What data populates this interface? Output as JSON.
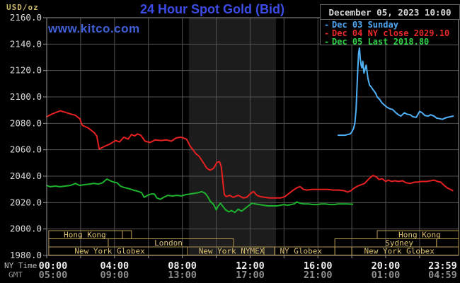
{
  "header": {
    "unit_label": "USD/oz",
    "unit_color": "#cdb96a",
    "title": "24 Hour Spot Gold (Bid)",
    "title_color": "#3d4ce6",
    "datetime": "December 05, 2023 10:00",
    "datetime_color": "#d6d6d6"
  },
  "watermark": {
    "text": "www.kitco.com",
    "color": "#4160d8"
  },
  "legend": {
    "entries": [
      {
        "marker": "-",
        "label": "Dec 03 Sunday",
        "color": "#4fa6f2"
      },
      {
        "marker": "-",
        "label": "Dec 04 NY close 2029.10",
        "color": "#ea2828"
      },
      {
        "marker": "-",
        "label": "Dec 05 Last 2018.80",
        "color": "#30d048"
      }
    ]
  },
  "chart_data": {
    "type": "line",
    "title": "24 Hour Spot Gold (Bid)",
    "ylabel": "USD/oz",
    "colors": {
      "background": "#000000",
      "band": "#1c1c1c",
      "grid": "#525252",
      "border": "#959595",
      "axis_text": "#dcdcdc",
      "ny_text": "#ededed",
      "gmt_text": "#8f8f8f",
      "tz_label_text": "#bdbdbd",
      "session_border": "#b09752",
      "session_text": "#ddc172"
    },
    "y_axis": {
      "min": 1980,
      "max": 2160,
      "step": 20,
      "tick_format": "####.0"
    },
    "x_axis": {
      "timezone_labels": [
        "NY Time",
        "GMT"
      ],
      "tick_hours": [
        0,
        4,
        8,
        12,
        16,
        20,
        23.983
      ],
      "ny_ticks": [
        "00:00",
        "04:00",
        "08:00",
        "12:00",
        "16:00",
        "20:00",
        "23:59"
      ],
      "gmt_ticks": [
        "05:00",
        "09:00",
        "13:00",
        "17:00",
        "21:00",
        "01:00",
        "04:59"
      ],
      "range_hours": [
        0,
        24
      ]
    },
    "highlight_band_hours": [
      8.39,
      13.53
    ],
    "sessions": [
      {
        "row": 0,
        "from": 0.12,
        "to": 4.47,
        "label": "Hong Kong",
        "label_h": 2.25
      },
      {
        "row": 0,
        "from": 4.47,
        "to": 5.0,
        "label": "",
        "label_h": 0
      },
      {
        "row": 0,
        "from": 19.5,
        "to": 24.3,
        "label": "Hong Kong",
        "label_h": 22.0
      },
      {
        "row": 1,
        "from": 0.12,
        "to": 3.63,
        "label": "",
        "label_h": 0
      },
      {
        "row": 1,
        "from": 3.63,
        "to": 11.02,
        "label": "London",
        "label_h": 7.18
      },
      {
        "row": 1,
        "from": 17.0,
        "to": 23.0,
        "label": "Sydney",
        "label_h": 20.8
      },
      {
        "row": 1,
        "from": 23.0,
        "to": 24.3,
        "label": "",
        "label_h": 0
      },
      {
        "row": 2,
        "from": 0.12,
        "to": 8.31,
        "label": "New York Globex",
        "label_h": 3.72
      },
      {
        "row": 2,
        "from": 8.31,
        "to": 12.82,
        "label": "New York NYMEX",
        "label_h": 10.9
      },
      {
        "row": 2,
        "from": 12.82,
        "to": 13.44,
        "label": "",
        "label_h": 0
      },
      {
        "row": 2,
        "from": 13.44,
        "to": 17.0,
        "label": "NY Globex",
        "label_h": 15.0
      },
      {
        "row": 2,
        "from": 17.0,
        "to": 18.0,
        "label": "",
        "label_h": 0
      },
      {
        "row": 2,
        "from": 18.0,
        "to": 24.3,
        "label": "New York Globex",
        "label_h": 20.8
      }
    ],
    "series": [
      {
        "id": "dec03",
        "name": "Dec 03 Sunday",
        "color": "#4fb0f5",
        "points": [
          [
            17.2,
            2071
          ],
          [
            17.4,
            2071
          ],
          [
            17.6,
            2071
          ],
          [
            17.75,
            2071.5
          ],
          [
            17.9,
            2072
          ],
          [
            18.0,
            2073.5
          ],
          [
            18.1,
            2076
          ],
          [
            18.18,
            2080
          ],
          [
            18.25,
            2090
          ],
          [
            18.3,
            2105
          ],
          [
            18.35,
            2120
          ],
          [
            18.4,
            2133
          ],
          [
            18.45,
            2137
          ],
          [
            18.5,
            2129
          ],
          [
            18.55,
            2124
          ],
          [
            18.6,
            2122
          ],
          [
            18.65,
            2127
          ],
          [
            18.72,
            2118
          ],
          [
            18.78,
            2121
          ],
          [
            18.85,
            2124
          ],
          [
            18.95,
            2114
          ],
          [
            19.05,
            2109
          ],
          [
            19.15,
            2107.5
          ],
          [
            19.25,
            2105.5
          ],
          [
            19.4,
            2103
          ],
          [
            19.5,
            2100
          ],
          [
            19.65,
            2098
          ],
          [
            19.78,
            2095.5
          ],
          [
            19.95,
            2093.5
          ],
          [
            20.1,
            2092
          ],
          [
            20.25,
            2091
          ],
          [
            20.4,
            2090.5
          ],
          [
            20.6,
            2088
          ],
          [
            20.75,
            2086.5
          ],
          [
            20.9,
            2085.5
          ],
          [
            21.1,
            2088
          ],
          [
            21.25,
            2087
          ],
          [
            21.45,
            2086.5
          ],
          [
            21.6,
            2085
          ],
          [
            21.8,
            2084.5
          ],
          [
            22.0,
            2089
          ],
          [
            22.15,
            2088
          ],
          [
            22.3,
            2086
          ],
          [
            22.5,
            2085.5
          ],
          [
            22.65,
            2086.5
          ],
          [
            22.85,
            2085.5
          ],
          [
            23.0,
            2084
          ],
          [
            23.2,
            2083.5
          ],
          [
            23.35,
            2083
          ],
          [
            23.5,
            2084
          ],
          [
            23.65,
            2084.5
          ],
          [
            23.8,
            2085
          ],
          [
            23.98,
            2085.5
          ]
        ]
      },
      {
        "id": "dec04",
        "name": "Dec 04",
        "color": "#e62020",
        "points": [
          [
            0.0,
            2085
          ],
          [
            0.3,
            2087
          ],
          [
            0.8,
            2089.5
          ],
          [
            1.3,
            2087.5
          ],
          [
            1.7,
            2086
          ],
          [
            1.95,
            2083.5
          ],
          [
            2.1,
            2078.5
          ],
          [
            2.45,
            2076.5
          ],
          [
            2.8,
            2073
          ],
          [
            2.95,
            2070.5
          ],
          [
            3.1,
            2060.5
          ],
          [
            3.4,
            2062.5
          ],
          [
            3.75,
            2064.5
          ],
          [
            4.05,
            2067
          ],
          [
            4.3,
            2066
          ],
          [
            4.55,
            2069.5
          ],
          [
            4.8,
            2068
          ],
          [
            5.0,
            2071.5
          ],
          [
            5.2,
            2070.5
          ],
          [
            5.35,
            2072
          ],
          [
            5.55,
            2071
          ],
          [
            5.8,
            2066.5
          ],
          [
            6.1,
            2065.5
          ],
          [
            6.4,
            2067.5
          ],
          [
            6.75,
            2067
          ],
          [
            7.05,
            2067.5
          ],
          [
            7.35,
            2066.5
          ],
          [
            7.65,
            2069
          ],
          [
            7.9,
            2069.5
          ],
          [
            8.05,
            2069
          ],
          [
            8.25,
            2068
          ],
          [
            8.45,
            2063
          ],
          [
            8.6,
            2060.5
          ],
          [
            8.8,
            2057
          ],
          [
            9.0,
            2055
          ],
          [
            9.2,
            2051
          ],
          [
            9.45,
            2046
          ],
          [
            9.65,
            2044.5
          ],
          [
            9.85,
            2046
          ],
          [
            10.05,
            2050.5
          ],
          [
            10.2,
            2051
          ],
          [
            10.3,
            2047
          ],
          [
            10.4,
            2035
          ],
          [
            10.48,
            2026
          ],
          [
            10.6,
            2024.5
          ],
          [
            10.8,
            2025.5
          ],
          [
            11.0,
            2024
          ],
          [
            11.3,
            2025.5
          ],
          [
            11.6,
            2023.5
          ],
          [
            11.8,
            2024
          ],
          [
            12.0,
            2026.5
          ],
          [
            12.2,
            2028.5
          ],
          [
            12.4,
            2025.5
          ],
          [
            12.6,
            2024.5
          ],
          [
            12.85,
            2024
          ],
          [
            13.15,
            2023.5
          ],
          [
            13.45,
            2023.5
          ],
          [
            13.8,
            2023.5
          ],
          [
            14.05,
            2024.5
          ],
          [
            14.3,
            2027
          ],
          [
            14.55,
            2029.5
          ],
          [
            14.8,
            2031.5
          ],
          [
            14.95,
            2032
          ],
          [
            15.15,
            2030
          ],
          [
            15.35,
            2029.5
          ],
          [
            15.65,
            2030
          ],
          [
            16.0,
            2030
          ],
          [
            16.3,
            2030
          ],
          [
            16.6,
            2030
          ],
          [
            16.9,
            2029.5
          ],
          [
            17.2,
            2029.5
          ],
          [
            17.55,
            2029
          ],
          [
            17.75,
            2028
          ],
          [
            17.95,
            2029
          ],
          [
            18.15,
            2031
          ],
          [
            18.35,
            2032.5
          ],
          [
            18.55,
            2033.5
          ],
          [
            18.75,
            2034.5
          ],
          [
            19.05,
            2038.5
          ],
          [
            19.25,
            2040.5
          ],
          [
            19.45,
            2039.5
          ],
          [
            19.6,
            2037.5
          ],
          [
            19.8,
            2038
          ],
          [
            20.0,
            2036
          ],
          [
            20.15,
            2037
          ],
          [
            20.35,
            2036
          ],
          [
            20.55,
            2036.5
          ],
          [
            20.75,
            2036
          ],
          [
            21.0,
            2036.5
          ],
          [
            21.2,
            2035
          ],
          [
            21.45,
            2034.5
          ],
          [
            21.7,
            2035.5
          ],
          [
            21.9,
            2035.5
          ],
          [
            22.1,
            2036
          ],
          [
            22.4,
            2036
          ],
          [
            22.65,
            2036.5
          ],
          [
            22.85,
            2037
          ],
          [
            23.05,
            2036
          ],
          [
            23.25,
            2035.5
          ],
          [
            23.45,
            2033
          ],
          [
            23.65,
            2031
          ],
          [
            23.95,
            2029.1
          ]
        ]
      },
      {
        "id": "dec05",
        "name": "Dec 05",
        "color": "#1db32d",
        "points": [
          [
            0.0,
            2033
          ],
          [
            0.2,
            2032
          ],
          [
            0.5,
            2032.5
          ],
          [
            0.8,
            2032
          ],
          [
            1.1,
            2032.5
          ],
          [
            1.4,
            2033
          ],
          [
            1.7,
            2034.5
          ],
          [
            1.95,
            2033
          ],
          [
            2.2,
            2033.5
          ],
          [
            2.5,
            2034
          ],
          [
            2.8,
            2034.5
          ],
          [
            3.05,
            2034
          ],
          [
            3.3,
            2035
          ],
          [
            3.55,
            2037.8
          ],
          [
            3.75,
            2036.5
          ],
          [
            3.95,
            2035.5
          ],
          [
            4.15,
            2035
          ],
          [
            4.35,
            2032.5
          ],
          [
            4.55,
            2031.5
          ],
          [
            4.85,
            2030.5
          ],
          [
            5.1,
            2029.5
          ],
          [
            5.4,
            2028.5
          ],
          [
            5.6,
            2027.5
          ],
          [
            5.75,
            2024
          ],
          [
            5.95,
            2025.5
          ],
          [
            6.15,
            2026.5
          ],
          [
            6.35,
            2026.5
          ],
          [
            6.5,
            2023.5
          ],
          [
            6.7,
            2022.5
          ],
          [
            6.9,
            2024
          ],
          [
            7.15,
            2025.5
          ],
          [
            7.4,
            2025
          ],
          [
            7.7,
            2025.5
          ],
          [
            7.95,
            2025
          ],
          [
            8.2,
            2026
          ],
          [
            8.45,
            2026.5
          ],
          [
            8.7,
            2027
          ],
          [
            8.95,
            2027.5
          ],
          [
            9.15,
            2028.3
          ],
          [
            9.35,
            2027
          ],
          [
            9.5,
            2024.5
          ],
          [
            9.65,
            2021
          ],
          [
            9.85,
            2018.5
          ],
          [
            10.0,
            2014.5
          ],
          [
            10.1,
            2017
          ],
          [
            10.25,
            2019.5
          ],
          [
            10.4,
            2017
          ],
          [
            10.55,
            2014.5
          ],
          [
            10.75,
            2013
          ],
          [
            10.9,
            2014
          ],
          [
            11.1,
            2012.5
          ],
          [
            11.3,
            2015
          ],
          [
            11.5,
            2013.5
          ],
          [
            11.7,
            2015.5
          ],
          [
            11.9,
            2017.5
          ],
          [
            12.1,
            2019.5
          ],
          [
            12.3,
            2019
          ],
          [
            12.55,
            2018.5
          ],
          [
            12.8,
            2018
          ],
          [
            13.05,
            2017.5
          ],
          [
            13.3,
            2017.5
          ],
          [
            13.55,
            2017.5
          ],
          [
            13.8,
            2018
          ],
          [
            14.0,
            2018.5
          ],
          [
            14.2,
            2018
          ],
          [
            14.4,
            2018.5
          ],
          [
            14.6,
            2019
          ],
          [
            14.75,
            2020.5
          ],
          [
            14.95,
            2019.5
          ],
          [
            15.2,
            2019
          ],
          [
            15.45,
            2019
          ],
          [
            15.7,
            2018.5
          ],
          [
            15.95,
            2018.5
          ],
          [
            16.2,
            2019
          ],
          [
            16.45,
            2019
          ],
          [
            16.7,
            2018.5
          ],
          [
            16.95,
            2018.5
          ],
          [
            17.2,
            2019
          ],
          [
            17.45,
            2019
          ],
          [
            17.7,
            2019
          ],
          [
            18.05,
            2018.8
          ]
        ]
      }
    ]
  }
}
